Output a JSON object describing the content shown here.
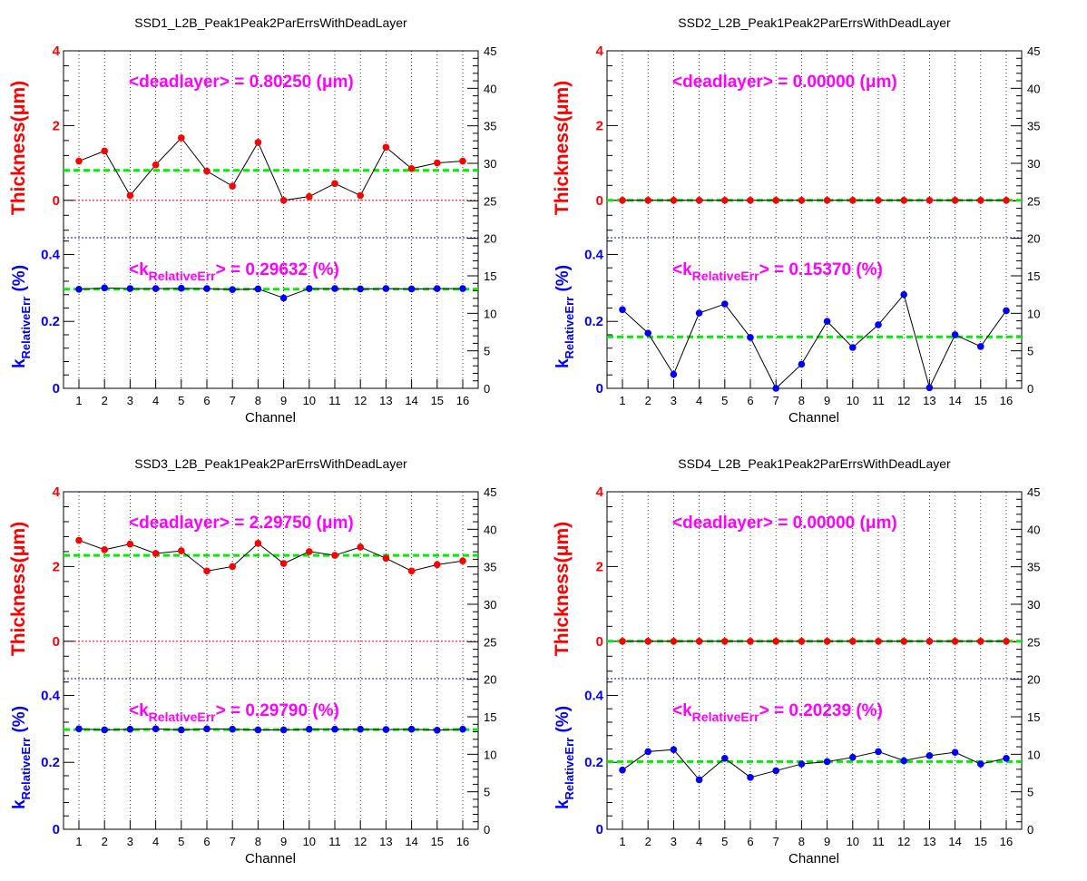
{
  "colors": {
    "thickness": "#ff0000",
    "k": "#0000ff",
    "mean": "#00ee00",
    "annotation": "#ff00ff",
    "line": "#000000"
  },
  "chart_data": [
    {
      "type": "scatter",
      "title": "SSD1_L2B_Peak1Peak2ParErrsWithDeadLayer",
      "xlabel": "Channel",
      "ylabel_thickness": "Thickness(μm)",
      "ylabel_k": "k",
      "ylabel_k_sub": "RelativeErr",
      "ylabel_k_unit": " (%)",
      "x": [
        1,
        2,
        3,
        4,
        5,
        6,
        7,
        8,
        9,
        10,
        11,
        12,
        13,
        14,
        15,
        16
      ],
      "thickness": [
        1.05,
        1.32,
        0.13,
        0.95,
        1.67,
        0.78,
        0.38,
        1.55,
        0.0,
        0.1,
        0.45,
        0.13,
        1.42,
        0.85,
        1.0,
        1.05
      ],
      "thickness_mean": 0.8025,
      "thickness_annotation": "<deadlayer> = 0.80250 (μm)",
      "k": [
        0.296,
        0.3,
        0.298,
        0.298,
        0.299,
        0.298,
        0.295,
        0.297,
        0.27,
        0.298,
        0.298,
        0.297,
        0.298,
        0.297,
        0.298,
        0.298
      ],
      "k_mean": 0.29632,
      "k_annotation_pre": "<k",
      "k_annotation_sub": "RelativeErr",
      "k_annotation_post": "> = 0.29632 (%)",
      "thickness_ylim": [
        -1,
        4
      ],
      "k_ylim": [
        0,
        0.45
      ],
      "right_axis_ylim": [
        0,
        45
      ],
      "thickness_ticks": [
        "0",
        "2",
        "4"
      ],
      "k_ticks": [
        "0",
        "0.2",
        "0.4"
      ],
      "right_ticks": [
        "0",
        "5",
        "10",
        "15",
        "20",
        "25",
        "30",
        "35",
        "40",
        "45"
      ],
      "x_ticks": [
        "1",
        "2",
        "3",
        "4",
        "5",
        "6",
        "7",
        "8",
        "9",
        "10",
        "11",
        "12",
        "13",
        "14",
        "15",
        "16"
      ],
      "grid": true
    },
    {
      "type": "scatter",
      "title": "SSD2_L2B_Peak1Peak2ParErrsWithDeadLayer",
      "xlabel": "Channel",
      "ylabel_thickness": "Thickness(μm)",
      "ylabel_k": "k",
      "ylabel_k_sub": "RelativeErr",
      "ylabel_k_unit": " (%)",
      "x": [
        1,
        2,
        3,
        4,
        5,
        6,
        7,
        8,
        9,
        10,
        11,
        12,
        13,
        14,
        15,
        16
      ],
      "thickness": [
        0,
        0,
        0,
        0,
        0,
        0,
        0,
        0,
        0,
        0,
        0,
        0,
        0,
        0,
        0,
        0
      ],
      "thickness_mean": 0.0,
      "thickness_annotation": "<deadlayer> = 0.00000 (μm)",
      "k": [
        0.235,
        0.165,
        0.042,
        0.225,
        0.252,
        0.152,
        0.0,
        0.072,
        0.2,
        0.122,
        0.19,
        0.28,
        0.002,
        0.16,
        0.125,
        0.232
      ],
      "k_mean": 0.1537,
      "k_annotation_pre": "<k",
      "k_annotation_sub": "RelativeErr",
      "k_annotation_post": "> = 0.15370 (%)",
      "thickness_ylim": [
        -1,
        4
      ],
      "k_ylim": [
        0,
        0.45
      ],
      "right_axis_ylim": [
        0,
        45
      ],
      "thickness_ticks": [
        "0",
        "2",
        "4"
      ],
      "k_ticks": [
        "0",
        "0.2",
        "0.4"
      ],
      "right_ticks": [
        "0",
        "5",
        "10",
        "15",
        "20",
        "25",
        "30",
        "35",
        "40",
        "45"
      ],
      "x_ticks": [
        "1",
        "2",
        "3",
        "4",
        "5",
        "6",
        "7",
        "8",
        "9",
        "10",
        "11",
        "12",
        "13",
        "14",
        "15",
        "16"
      ],
      "grid": true
    },
    {
      "type": "scatter",
      "title": "SSD3_L2B_Peak1Peak2ParErrsWithDeadLayer",
      "xlabel": "Channel",
      "ylabel_thickness": "Thickness(μm)",
      "ylabel_k": "k",
      "ylabel_k_sub": "RelativeErr",
      "ylabel_k_unit": " (%)",
      "x": [
        1,
        2,
        3,
        4,
        5,
        6,
        7,
        8,
        9,
        10,
        11,
        12,
        13,
        14,
        15,
        16
      ],
      "thickness": [
        2.7,
        2.45,
        2.6,
        2.35,
        2.42,
        1.88,
        2.0,
        2.62,
        2.08,
        2.4,
        2.3,
        2.52,
        2.22,
        1.88,
        2.05,
        2.15
      ],
      "thickness_mean": 2.2975,
      "thickness_annotation": "<deadlayer> = 2.29750 (μm)",
      "k": [
        0.3,
        0.297,
        0.299,
        0.3,
        0.297,
        0.3,
        0.299,
        0.297,
        0.297,
        0.299,
        0.299,
        0.299,
        0.298,
        0.299,
        0.296,
        0.299
      ],
      "k_mean": 0.2979,
      "k_annotation_pre": "<k",
      "k_annotation_sub": "RelativeErr",
      "k_annotation_post": "> = 0.29790 (%)",
      "thickness_ylim": [
        -1,
        4
      ],
      "k_ylim": [
        0,
        0.45
      ],
      "right_axis_ylim": [
        0,
        45
      ],
      "thickness_ticks": [
        "0",
        "2",
        "4"
      ],
      "k_ticks": [
        "0",
        "0.2",
        "0.4"
      ],
      "right_ticks": [
        "0",
        "5",
        "10",
        "15",
        "20",
        "25",
        "30",
        "35",
        "40",
        "45"
      ],
      "x_ticks": [
        "1",
        "2",
        "3",
        "4",
        "5",
        "6",
        "7",
        "8",
        "9",
        "10",
        "11",
        "12",
        "13",
        "14",
        "15",
        "16"
      ],
      "grid": true
    },
    {
      "type": "scatter",
      "title": "SSD4_L2B_Peak1Peak2ParErrsWithDeadLayer",
      "xlabel": "Channel",
      "ylabel_thickness": "Thickness(μm)",
      "ylabel_k": "k",
      "ylabel_k_sub": "RelativeErr",
      "ylabel_k_unit": " (%)",
      "x": [
        1,
        2,
        3,
        4,
        5,
        6,
        7,
        8,
        9,
        10,
        11,
        12,
        13,
        14,
        15,
        16
      ],
      "thickness": [
        0,
        0,
        0,
        0,
        0,
        0,
        0,
        0,
        0,
        0,
        0,
        0,
        0,
        0,
        0,
        0
      ],
      "thickness_mean": 0.0,
      "thickness_annotation": "<deadlayer> = 0.00000 (μm)",
      "k": [
        0.177,
        0.232,
        0.238,
        0.148,
        0.212,
        0.155,
        0.175,
        0.195,
        0.202,
        0.215,
        0.232,
        0.205,
        0.22,
        0.23,
        0.195,
        0.212
      ],
      "k_mean": 0.20239,
      "k_annotation_pre": "<k",
      "k_annotation_sub": "RelativeErr",
      "k_annotation_post": "> = 0.20239 (%)",
      "thickness_ylim": [
        -1,
        4
      ],
      "k_ylim": [
        0,
        0.45
      ],
      "right_axis_ylim": [
        0,
        45
      ],
      "thickness_ticks": [
        "0",
        "2",
        "4"
      ],
      "k_ticks": [
        "0",
        "0.2",
        "0.4"
      ],
      "right_ticks": [
        "0",
        "5",
        "10",
        "15",
        "20",
        "25",
        "30",
        "35",
        "40",
        "45"
      ],
      "x_ticks": [
        "1",
        "2",
        "3",
        "4",
        "5",
        "6",
        "7",
        "8",
        "9",
        "10",
        "11",
        "12",
        "13",
        "14",
        "15",
        "16"
      ],
      "grid": true
    }
  ]
}
